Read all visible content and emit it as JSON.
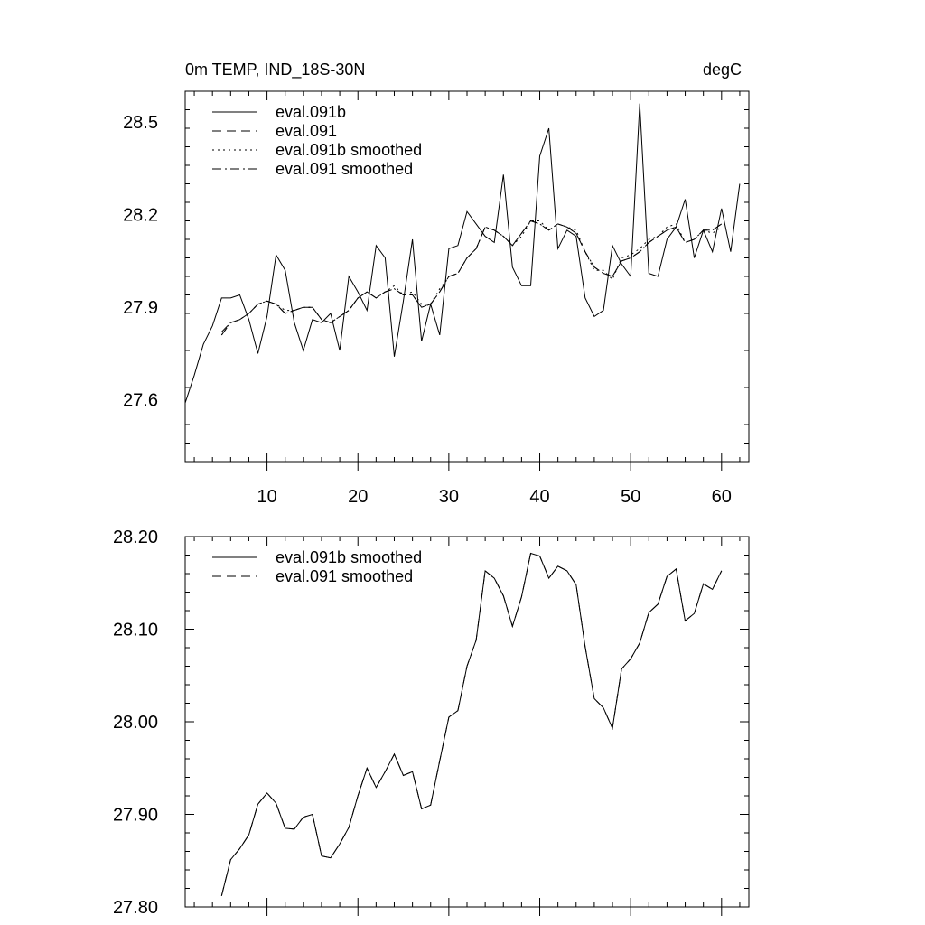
{
  "chart_data": [
    {
      "type": "line",
      "title": "0m TEMP, IND_18S-30N",
      "units": "degC",
      "xlabel": "",
      "ylabel": "",
      "xlim": [
        1,
        63
      ],
      "ylim": [
        27.4,
        28.6
      ],
      "xticks": [
        10,
        20,
        30,
        40,
        50,
        60
      ],
      "yticks": [
        27.6,
        27.9,
        28.2,
        28.5
      ],
      "ytick_labels": [
        "27.6",
        "27.9",
        "28.2",
        "28.5"
      ],
      "grid": false,
      "legend_position": "top-left",
      "x": [
        1,
        2,
        3,
        4,
        5,
        6,
        7,
        8,
        9,
        10,
        11,
        12,
        13,
        14,
        15,
        16,
        17,
        18,
        19,
        20,
        21,
        22,
        23,
        24,
        25,
        26,
        27,
        28,
        29,
        30,
        31,
        32,
        33,
        34,
        35,
        36,
        37,
        38,
        39,
        40,
        41,
        42,
        43,
        44,
        45,
        46,
        47,
        48,
        49,
        50,
        51,
        52,
        53,
        54,
        55,
        56,
        57,
        58,
        59,
        60,
        61,
        62,
        63
      ],
      "series": [
        {
          "name": "eval.091b",
          "dash": "solid",
          "values": [
            27.59,
            27.68,
            27.78,
            27.84,
            27.93,
            27.93,
            27.94,
            27.86,
            27.75,
            27.87,
            28.07,
            28.02,
            27.85,
            27.76,
            27.86,
            27.85,
            27.88,
            27.76,
            28.0,
            27.95,
            27.89,
            28.1,
            28.06,
            27.74,
            27.92,
            28.12,
            27.79,
            27.91,
            27.81,
            28.09,
            28.1,
            28.21,
            28.17,
            28.13,
            28.11,
            28.33,
            28.03,
            27.97,
            27.97,
            28.39,
            28.48,
            28.09,
            28.15,
            28.13,
            27.93,
            27.87,
            27.89,
            28.1,
            28.04,
            28.0,
            28.56,
            28.01,
            28.0,
            28.12,
            28.16,
            28.25,
            28.06,
            28.15,
            28.08,
            28.22,
            28.08,
            28.3,
            null
          ]
        },
        {
          "name": "eval.091",
          "dash": "long-dash",
          "values": [
            null,
            null,
            null,
            null,
            27.81,
            27.85,
            27.86,
            27.88,
            27.91,
            27.92,
            27.91,
            27.88,
            27.89,
            27.9,
            27.9,
            27.86,
            27.85,
            27.87,
            27.89,
            27.93,
            27.95,
            27.93,
            27.95,
            27.96,
            27.94,
            27.94,
            27.9,
            27.91,
            27.95,
            28.0,
            28.01,
            28.06,
            28.09,
            28.16,
            28.15,
            28.13,
            28.1,
            28.14,
            28.18,
            28.17,
            28.15,
            28.17,
            28.16,
            28.14,
            28.08,
            28.03,
            28.01,
            28.0,
            28.05,
            28.06,
            28.08,
            28.11,
            28.13,
            28.15,
            28.16,
            28.11,
            28.12,
            28.15,
            28.15,
            28.17,
            null,
            null,
            null
          ]
        },
        {
          "name": "eval.091b smoothed",
          "dash": "dotted",
          "values": [
            null,
            null,
            null,
            null,
            27.81,
            27.85,
            27.86,
            27.88,
            27.91,
            27.92,
            27.91,
            27.89,
            27.89,
            27.9,
            27.9,
            27.86,
            27.85,
            27.87,
            27.89,
            27.93,
            27.95,
            27.93,
            27.95,
            27.97,
            27.94,
            27.95,
            27.91,
            27.91,
            27.96,
            28.0,
            28.01,
            28.06,
            28.09,
            28.16,
            28.15,
            28.13,
            28.1,
            28.13,
            28.18,
            28.18,
            28.15,
            28.17,
            28.16,
            28.15,
            28.08,
            28.02,
            28.02,
            27.99,
            28.06,
            28.07,
            28.09,
            28.12,
            28.13,
            28.16,
            28.17,
            28.11,
            28.12,
            28.15,
            28.14,
            28.16,
            null,
            null,
            null
          ]
        },
        {
          "name": "eval.091 smoothed",
          "dash": "dash-dot",
          "values": [
            null,
            null,
            null,
            null,
            27.82,
            27.85,
            27.86,
            27.88,
            27.91,
            27.92,
            27.91,
            27.88,
            27.89,
            27.9,
            27.9,
            27.86,
            27.85,
            27.87,
            27.89,
            27.93,
            27.95,
            27.93,
            27.95,
            27.96,
            27.94,
            27.94,
            27.9,
            27.91,
            27.95,
            28.0,
            28.01,
            28.06,
            28.09,
            28.16,
            28.15,
            28.13,
            28.1,
            28.14,
            28.18,
            28.17,
            28.15,
            28.17,
            28.16,
            28.14,
            28.08,
            28.03,
            28.01,
            28.0,
            28.05,
            28.06,
            28.08,
            28.11,
            28.13,
            28.15,
            28.16,
            28.11,
            28.12,
            28.15,
            28.15,
            28.17,
            null,
            null,
            null
          ]
        }
      ]
    },
    {
      "type": "line",
      "title": "",
      "xlabel": "",
      "ylabel": "",
      "xlim": [
        1,
        63
      ],
      "ylim": [
        27.8,
        28.2
      ],
      "xticks": [
        10,
        20,
        30,
        40,
        50,
        60
      ],
      "yticks": [
        27.8,
        27.9,
        28.0,
        28.1,
        28.2
      ],
      "ytick_labels": [
        "27.80",
        "27.90",
        "28.00",
        "28.10",
        "28.20"
      ],
      "grid": false,
      "legend_position": "top-left",
      "x": [
        1,
        2,
        3,
        4,
        5,
        6,
        7,
        8,
        9,
        10,
        11,
        12,
        13,
        14,
        15,
        16,
        17,
        18,
        19,
        20,
        21,
        22,
        23,
        24,
        25,
        26,
        27,
        28,
        29,
        30,
        31,
        32,
        33,
        34,
        35,
        36,
        37,
        38,
        39,
        40,
        41,
        42,
        43,
        44,
        45,
        46,
        47,
        48,
        49,
        50,
        51,
        52,
        53,
        54,
        55,
        56,
        57,
        58,
        59,
        60,
        61,
        62,
        63
      ],
      "series": [
        {
          "name": "eval.091b smoothed",
          "dash": "solid",
          "values": [
            null,
            null,
            null,
            null,
            27.812,
            27.851,
            27.863,
            27.878,
            27.911,
            27.923,
            27.912,
            27.885,
            27.884,
            27.897,
            27.9,
            27.855,
            27.853,
            27.868,
            27.886,
            27.92,
            27.95,
            27.929,
            27.946,
            27.965,
            27.942,
            27.946,
            27.906,
            27.91,
            27.958,
            28.005,
            28.012,
            28.06,
            28.088,
            28.163,
            28.155,
            28.136,
            28.103,
            28.135,
            28.182,
            28.179,
            28.155,
            28.168,
            28.163,
            28.148,
            28.081,
            28.025,
            28.015,
            27.993,
            28.057,
            28.068,
            28.085,
            28.118,
            28.127,
            28.157,
            28.165,
            28.109,
            28.117,
            28.149,
            28.143,
            28.163,
            null,
            null,
            null
          ]
        },
        {
          "name": "eval.091 smoothed",
          "dash": "long-dash",
          "values": [
            null,
            null,
            null,
            null,
            27.812,
            27.851,
            27.863,
            27.878,
            27.911,
            27.923,
            27.912,
            27.885,
            27.884,
            27.897,
            27.9,
            27.855,
            27.853,
            27.868,
            27.886,
            27.92,
            27.95,
            27.929,
            27.946,
            27.965,
            27.942,
            27.946,
            27.906,
            27.91,
            27.958,
            28.005,
            28.012,
            28.06,
            28.088,
            28.163,
            28.155,
            28.136,
            28.103,
            28.135,
            28.182,
            28.179,
            28.155,
            28.168,
            28.163,
            28.148,
            28.081,
            28.025,
            28.015,
            27.993,
            28.057,
            28.068,
            28.085,
            28.118,
            28.127,
            28.157,
            28.165,
            28.109,
            28.117,
            28.149,
            28.143,
            28.163,
            null,
            null,
            null
          ]
        }
      ]
    }
  ]
}
